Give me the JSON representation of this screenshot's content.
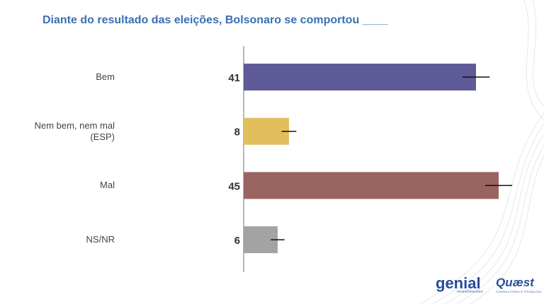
{
  "chart_data": {
    "type": "bar",
    "orientation": "horizontal",
    "title": "Diante do resultado das eleições, Bolsonaro se comportou ____",
    "categories": [
      "Bem",
      "Nem bem, nem mal (ESP)",
      "Mal",
      "NS/NR"
    ],
    "values": [
      41,
      8,
      45,
      6
    ],
    "errors": [
      2.4,
      1.3,
      2.4,
      1.2
    ],
    "colors": [
      "#5f5b99",
      "#e2bf5c",
      "#9a6461",
      "#a3a3a3"
    ]
  },
  "logos": {
    "genial": "genial",
    "genial_sub": "investimentos",
    "quaest": "Quæst",
    "quaest_sub": "CONSULTORIA E PESQUISA"
  }
}
